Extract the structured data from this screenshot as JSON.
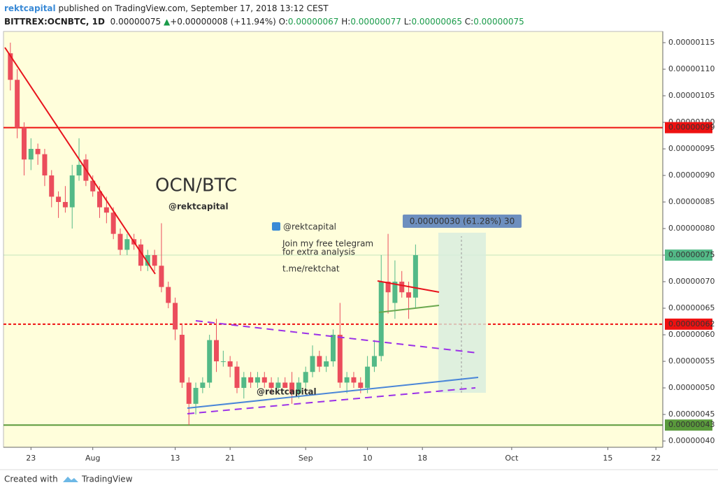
{
  "header": {
    "author": "rektcapital",
    "published": "published on TradingView.com, September 17, 2018 13:12 CEST",
    "symbol": "BITTREX:OCNBTC, 1D",
    "last": "0.00000075",
    "change": "+0.00000008 (+11.94%)",
    "ohlc": [
      {
        "label": "O:",
        "value": "0.00000067"
      },
      {
        "label": "H:",
        "value": "0.00000077"
      },
      {
        "label": "L:",
        "value": "0.00000065"
      },
      {
        "label": "C:",
        "value": "0.00000075"
      }
    ]
  },
  "annotations": {
    "title": "OCN/BTC",
    "handle_1": "@rektcapital",
    "handle_2": "@rektcapital",
    "telegram_1": "Join my free telegram",
    "telegram_2": "for extra analysis",
    "telegram_link": "t.me/rektchat",
    "handle_3": "@rektcapital",
    "measure": "0.00000030 (61.28%) 30"
  },
  "footer": {
    "created": "Created with",
    "brand": "TradingView"
  },
  "chart_data": {
    "type": "candlestick",
    "up_color": "#53b987",
    "down_color": "#eb4d5c",
    "x": [
      "2018-07-20",
      "2018-07-21",
      "2018-07-22",
      "2018-07-23",
      "2018-07-24",
      "2018-07-25",
      "2018-07-26",
      "2018-07-27",
      "2018-07-28",
      "2018-07-29",
      "2018-07-30",
      "2018-07-31",
      "2018-08-01",
      "2018-08-02",
      "2018-08-03",
      "2018-08-04",
      "2018-08-05",
      "2018-08-06",
      "2018-08-07",
      "2018-08-08",
      "2018-08-09",
      "2018-08-10",
      "2018-08-11",
      "2018-08-12",
      "2018-08-13",
      "2018-08-14",
      "2018-08-15",
      "2018-08-16",
      "2018-08-17",
      "2018-08-18",
      "2018-08-19",
      "2018-08-20",
      "2018-08-21",
      "2018-08-22",
      "2018-08-23",
      "2018-08-24",
      "2018-08-25",
      "2018-08-26",
      "2018-08-27",
      "2018-08-28",
      "2018-08-29",
      "2018-08-30",
      "2018-08-31",
      "2018-09-01",
      "2018-09-02",
      "2018-09-03",
      "2018-09-04",
      "2018-09-05",
      "2018-09-06",
      "2018-09-07",
      "2018-09-08",
      "2018-09-09",
      "2018-09-10",
      "2018-09-11",
      "2018-09-12",
      "2018-09-13",
      "2018-09-14",
      "2018-09-15",
      "2018-09-16",
      "2018-09-17"
    ],
    "open": [
      1.13e-06,
      1.08e-06,
      9.9e-07,
      9.3e-07,
      9.5e-07,
      9.4e-07,
      9e-07,
      8.6e-07,
      8.5e-07,
      8.4e-07,
      9e-07,
      9.3e-07,
      8.9e-07,
      8.7e-07,
      8.4e-07,
      8.3e-07,
      7.9e-07,
      7.6e-07,
      7.8e-07,
      7.7e-07,
      7.3e-07,
      7.5e-07,
      7.3e-07,
      6.9e-07,
      6.6e-07,
      6e-07,
      5.1e-07,
      4.7e-07,
      5e-07,
      5.1e-07,
      5.9e-07,
      5.5e-07,
      5.5e-07,
      5.4e-07,
      5e-07,
      5.2e-07,
      5.1e-07,
      5.2e-07,
      5.1e-07,
      5e-07,
      5.1e-07,
      5.1e-07,
      4.9e-07,
      5.1e-07,
      5.3e-07,
      5.6e-07,
      5.4e-07,
      5.5e-07,
      6e-07,
      5.1e-07,
      5.2e-07,
      5.1e-07,
      5e-07,
      5.4e-07,
      5.6e-07,
      7e-07,
      6.6e-07,
      7e-07,
      6.8e-07,
      6.7e-07
    ],
    "high": [
      1.15e-06,
      1.1e-06,
      1e-06,
      9.7e-07,
      9.6e-07,
      9.5e-07,
      9.1e-07,
      8.7e-07,
      8.8e-07,
      9.2e-07,
      9.7e-07,
      9.4e-07,
      9e-07,
      8.8e-07,
      8.6e-07,
      8.4e-07,
      8e-07,
      7.9e-07,
      7.9e-07,
      7.8e-07,
      7.6e-07,
      7.6e-07,
      8.1e-07,
      7e-07,
      6.7e-07,
      6.2e-07,
      5.2e-07,
      5.1e-07,
      5.2e-07,
      6e-07,
      6.3e-07,
      5.7e-07,
      5.6e-07,
      5.5e-07,
      5.3e-07,
      5.3e-07,
      5.3e-07,
      5.3e-07,
      5.2e-07,
      5.2e-07,
      5.2e-07,
      5.3e-07,
      5.2e-07,
      5.4e-07,
      5.8e-07,
      5.7e-07,
      5.6e-07,
      6.1e-07,
      6.6e-07,
      5.3e-07,
      5.3e-07,
      5.2e-07,
      5.6e-07,
      5.9e-07,
      7.5e-07,
      7.9e-07,
      7.4e-07,
      7.2e-07,
      7e-07,
      7.7e-07
    ],
    "low": [
      1.06e-06,
      9.7e-07,
      9e-07,
      9.1e-07,
      9.2e-07,
      8.8e-07,
      8.4e-07,
      8.2e-07,
      8.3e-07,
      8e-07,
      8.9e-07,
      8.8e-07,
      8.6e-07,
      8.2e-07,
      8.1e-07,
      7.8e-07,
      7.5e-07,
      7.5e-07,
      7.6e-07,
      7.2e-07,
      7.2e-07,
      7.2e-07,
      6.8e-07,
      6.5e-07,
      5.9e-07,
      5e-07,
      4.3e-07,
      4.5e-07,
      4.9e-07,
      5e-07,
      5.3e-07,
      5.4e-07,
      5.2e-07,
      4.9e-07,
      4.8e-07,
      5e-07,
      5e-07,
      5e-07,
      4.9e-07,
      4.9e-07,
      5e-07,
      4.7e-07,
      4.8e-07,
      5e-07,
      5.2e-07,
      5.3e-07,
      5.3e-07,
      5.4e-07,
      5e-07,
      4.9e-07,
      5e-07,
      4.9e-07,
      4.9e-07,
      5.3e-07,
      5.5e-07,
      6.4e-07,
      6.3e-07,
      6.7e-07,
      6.3e-07,
      6.5e-07
    ],
    "close": [
      1.08e-06,
      9.9e-07,
      9.3e-07,
      9.5e-07,
      9.4e-07,
      9e-07,
      8.6e-07,
      8.5e-07,
      8.4e-07,
      9e-07,
      9.2e-07,
      8.9e-07,
      8.7e-07,
      8.4e-07,
      8.3e-07,
      7.9e-07,
      7.6e-07,
      7.8e-07,
      7.7e-07,
      7.3e-07,
      7.5e-07,
      7.3e-07,
      6.9e-07,
      6.6e-07,
      6.1e-07,
      5.1e-07,
      4.7e-07,
      5e-07,
      5.1e-07,
      5.9e-07,
      5.5e-07,
      5.5e-07,
      5.4e-07,
      5e-07,
      5.2e-07,
      5.1e-07,
      5.2e-07,
      5.1e-07,
      5e-07,
      5.1e-07,
      5e-07,
      4.9e-07,
      5.1e-07,
      5.3e-07,
      5.6e-07,
      5.4e-07,
      5.5e-07,
      6e-07,
      5.1e-07,
      5.2e-07,
      5.1e-07,
      5e-07,
      5.4e-07,
      5.6e-07,
      7e-07,
      6.8e-07,
      7e-07,
      6.8e-07,
      6.7e-07,
      7.5e-07
    ],
    "xlim": [
      "2018-07-19",
      "2018-10-23"
    ],
    "xticks": [
      {
        "value": "2018-07-23",
        "label": "23"
      },
      {
        "value": "2018-08-01",
        "label": "Aug"
      },
      {
        "value": "2018-08-13",
        "label": "13"
      },
      {
        "value": "2018-08-21",
        "label": "21"
      },
      {
        "value": "2018-09-01",
        "label": "Sep"
      },
      {
        "value": "2018-09-10",
        "label": "10"
      },
      {
        "value": "2018-09-18",
        "label": "18"
      },
      {
        "value": "2018-10-01",
        "label": "Oct"
      },
      {
        "value": "2018-10-15",
        "label": "15"
      },
      {
        "value": "2018-10-22",
        "label": "22"
      }
    ],
    "ylim": [
      3.882e-07,
      1.1711e-06
    ],
    "yticks": [
      {
        "value": 1.15e-06,
        "label": "0.00000115"
      },
      {
        "value": 1.1e-06,
        "label": "0.00000110"
      },
      {
        "value": 1.05e-06,
        "label": "0.00000105"
      },
      {
        "value": 1e-06,
        "label": "0.00000100"
      },
      {
        "value": 9.5e-07,
        "label": "0.00000095"
      },
      {
        "value": 9e-07,
        "label": "0.00000090"
      },
      {
        "value": 8.5e-07,
        "label": "0.00000085"
      },
      {
        "value": 8e-07,
        "label": "0.00000080"
      },
      {
        "value": 7.5e-07,
        "label": "0.00000075"
      },
      {
        "value": 7e-07,
        "label": "0.00000070"
      },
      {
        "value": 6.5e-07,
        "label": "0.00000065"
      },
      {
        "value": 6e-07,
        "label": "0.00000060"
      },
      {
        "value": 5.5e-07,
        "label": "0.00000055"
      },
      {
        "value": 5e-07,
        "label": "0.00000050"
      },
      {
        "value": 4.5e-07,
        "label": "0.00000045"
      },
      {
        "value": 4e-07,
        "label": "0.00000040"
      }
    ],
    "levels": [
      {
        "value": 9.9e-07,
        "label": "0.00000099",
        "color": "#ee1111",
        "dashed": false
      },
      {
        "value": 7.5e-07,
        "label": "0.00000075",
        "color": "#53b987",
        "dashed": false,
        "faint": true
      },
      {
        "value": 6.2e-07,
        "label": "0.00000062",
        "color": "#ee1111",
        "dashed": true
      },
      {
        "value": 4.3e-07,
        "label": "0.00000043",
        "color": "#5a9a3c",
        "dashed": false
      }
    ]
  }
}
